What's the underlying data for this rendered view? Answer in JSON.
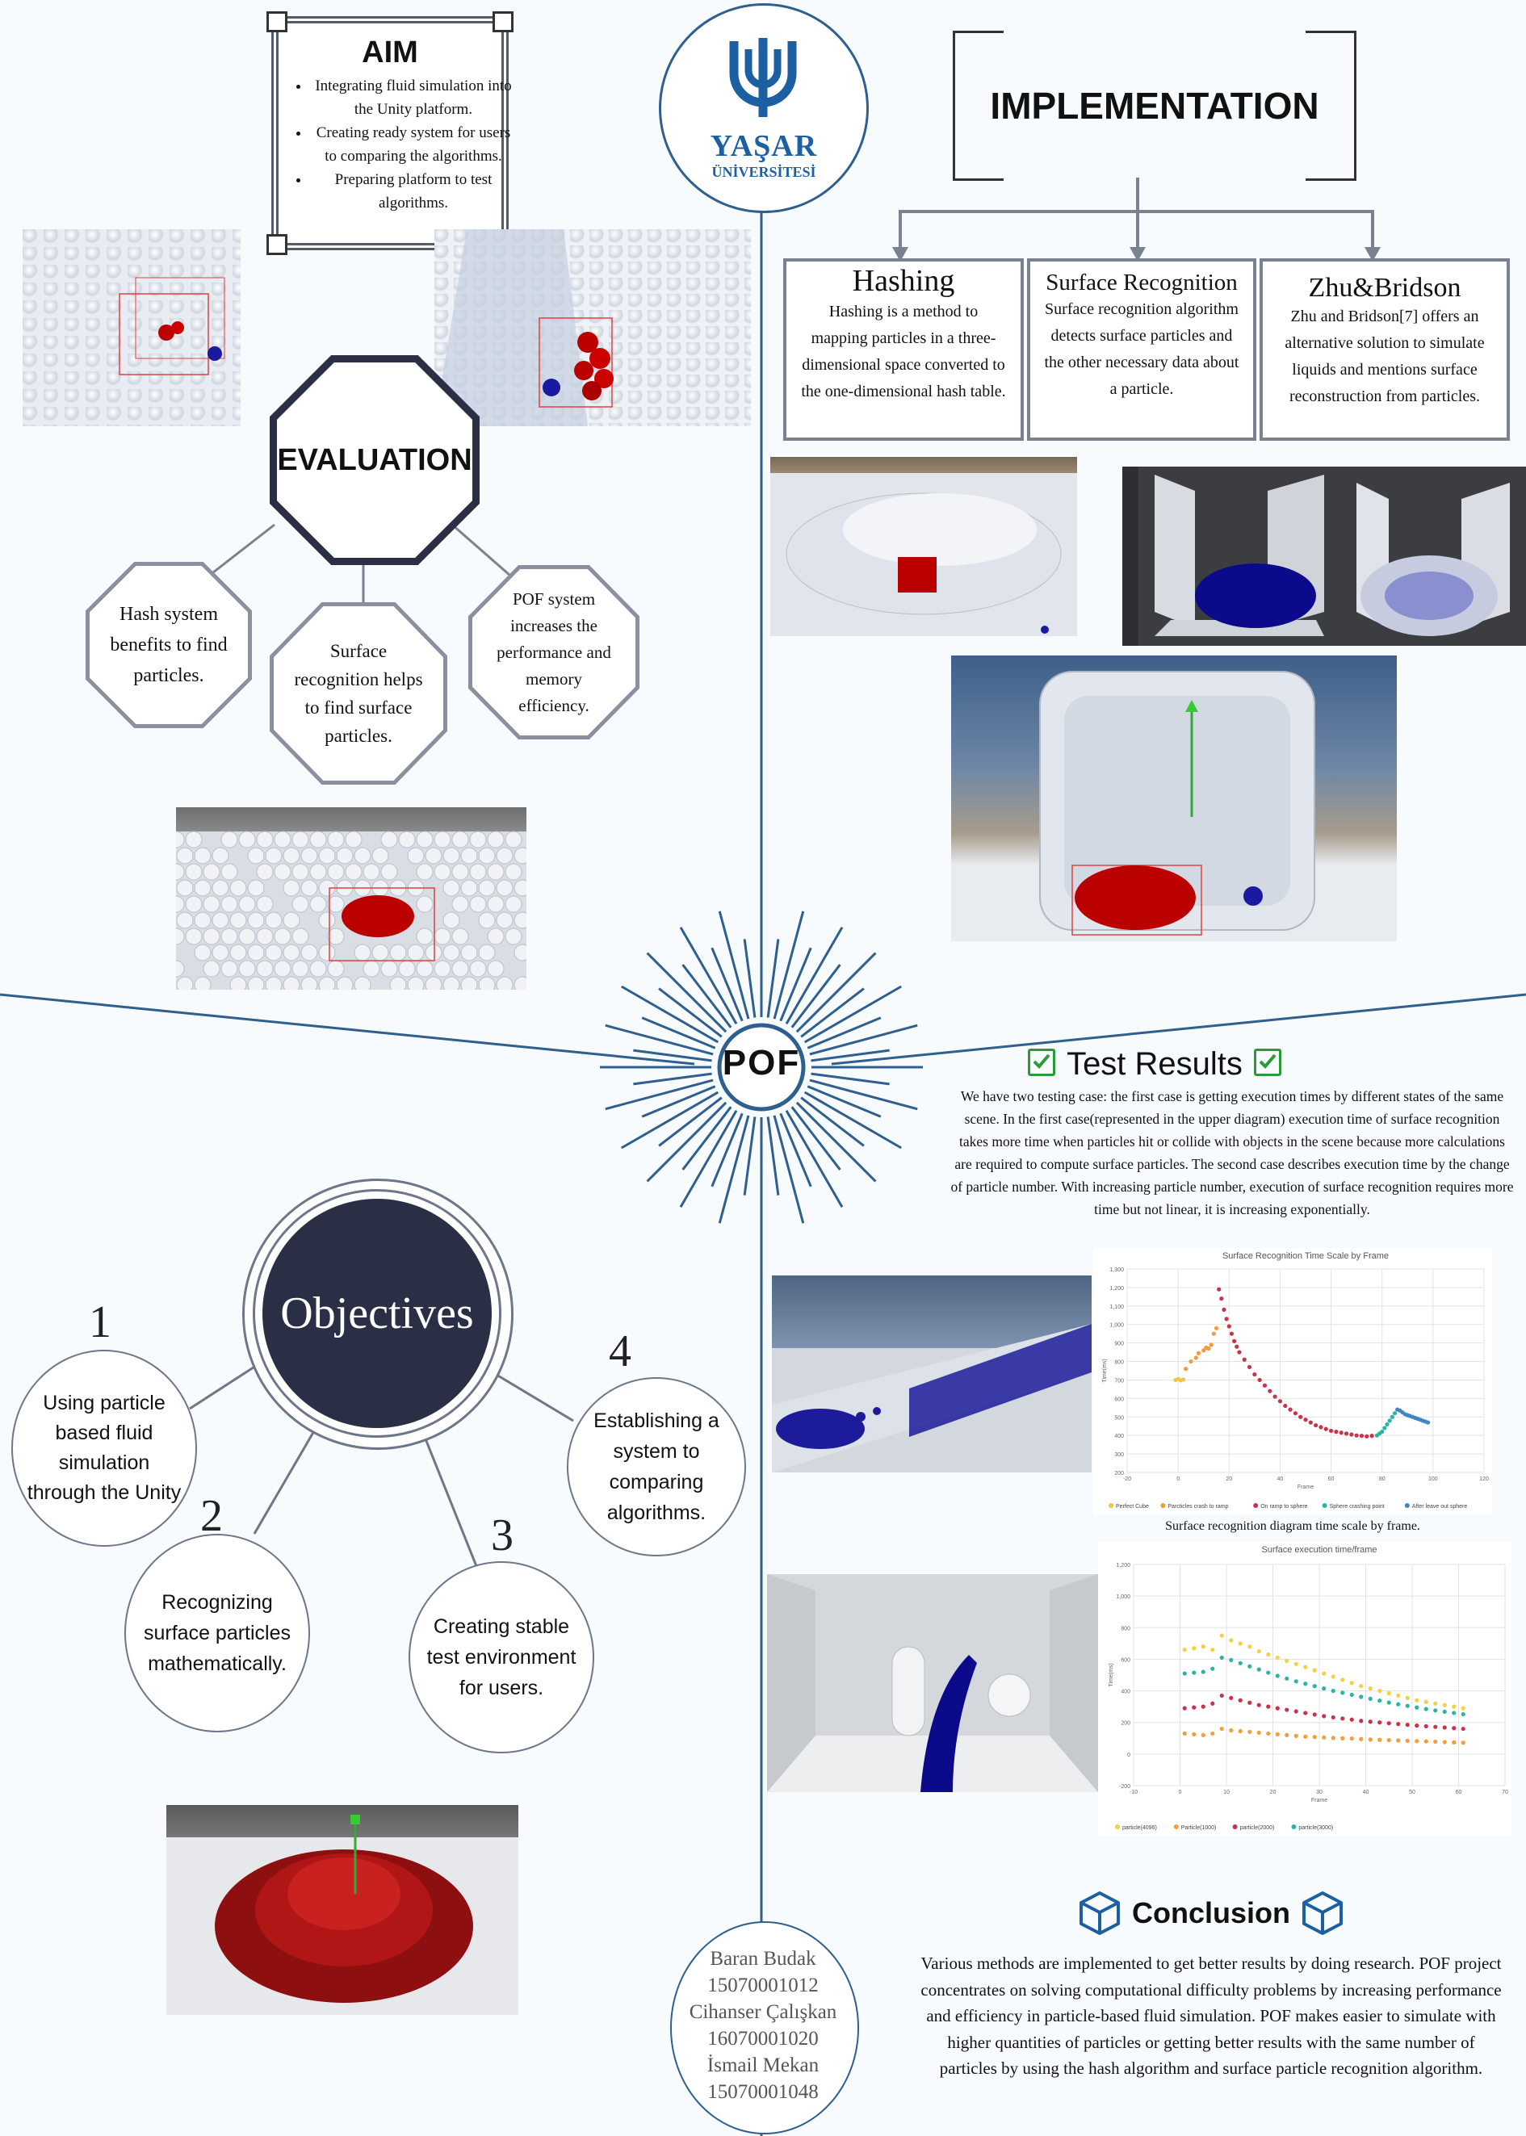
{
  "logo": {
    "name": "YAŞAR",
    "sub": "ÜNİVERSİTESİ"
  },
  "aim": {
    "title": "AIM",
    "items": [
      "Integrating fluid simulation into the Unity platform.",
      "Creating ready system for users to comparing the algorithms.",
      "Preparing platform to test algorithms."
    ]
  },
  "implementation": {
    "title": "IMPLEMENTATION",
    "hashing": {
      "title": "Hashing",
      "text": "Hashing is a method to mapping particles in a three-dimensional space converted to the one-dimensional hash table."
    },
    "surface": {
      "title": "Surface Recognition",
      "text": "Surface recognition algorithm detects surface particles and the other necessary data about a particle."
    },
    "zhu": {
      "title": "Zhu&Bridson",
      "text": "Zhu and Bridson[7] offers an alternative solution to simulate liquids and mentions surface reconstruction from particles."
    }
  },
  "evaluation": {
    "title": "EVALUATION",
    "items": [
      "Hash system benefits to find particles.",
      "Surface recognition helps to find surface particles.",
      "POF system increases the performance and memory efficiency."
    ]
  },
  "center_label": "POF",
  "objectives": {
    "title": "Objectives",
    "items": [
      {
        "num": "1",
        "text": "Using particle based fluid simulation through the Unity"
      },
      {
        "num": "2",
        "text": "Recognizing surface particles mathematically."
      },
      {
        "num": "3",
        "text": "Creating stable test environment for users."
      },
      {
        "num": "4",
        "text": "Establishing a system to comparing algorithms."
      }
    ]
  },
  "test_results": {
    "title": "Test Results",
    "text": "We have two testing case: the first case is getting execution times by different states of the same scene. In the first case(represented in the upper diagram) execution time of surface recognition takes more time when particles hit or collide with objects in the scene because more calculations are required to compute surface particles. The second case describes execution time by the change of particle number. With increasing particle number, execution of surface recognition requires more time but not linear, it is increasing exponentially.",
    "caption2": "Surface recognition diagram time scale by frame."
  },
  "conclusion": {
    "title": "Conclusion",
    "text": "Various methods are implemented to get better results by doing research. POF project concentrates on solving computational difficulty problems by increasing performance and efficiency in particle-based fluid simulation. POF makes easier to simulate with higher quantities of particles or getting better results with the same number of particles by using the hash algorithm and surface particle recognition algorithm."
  },
  "authors": [
    "Baran Budak",
    "15070001012",
    "Cihanser Çalışkan",
    "16070001020",
    "İsmail Mekan",
    "15070001048"
  ],
  "chart_data": [
    {
      "type": "scatter",
      "title": "Surface Recognition Time Scale by Frame",
      "xlabel": "Frame",
      "ylabel": "Time(ms)",
      "xlim": [
        -20,
        120
      ],
      "ylim": [
        200,
        1300
      ],
      "xticks": [
        -20,
        0,
        20,
        40,
        60,
        80,
        100,
        120
      ],
      "yticks": [
        200,
        300,
        400,
        500,
        600,
        700,
        800,
        900,
        1000,
        1100,
        1200,
        1300
      ],
      "grid": true,
      "legend": "bottom",
      "series": [
        {
          "name": "Perfect Cube",
          "color": "#f5c242",
          "points": [
            [
              -1,
              700
            ],
            [
              0,
              705
            ],
            [
              1,
              698
            ],
            [
              2,
              702
            ]
          ]
        },
        {
          "name": "Parcticles crash to ramp",
          "color": "#f5993a",
          "points": [
            [
              3,
              760
            ],
            [
              5,
              800
            ],
            [
              7,
              820
            ],
            [
              8,
              845
            ],
            [
              10,
              860
            ],
            [
              11,
              875
            ],
            [
              12,
              870
            ],
            [
              13,
              890
            ],
            [
              14,
              950
            ],
            [
              15,
              980
            ]
          ]
        },
        {
          "name": "On ramp to sphere",
          "color": "#c8334a",
          "points": [
            [
              16,
              1190
            ],
            [
              17,
              1140
            ],
            [
              18,
              1080
            ],
            [
              19,
              1030
            ],
            [
              20,
              990
            ],
            [
              21,
              950
            ],
            [
              22,
              910
            ],
            [
              23,
              880
            ],
            [
              24,
              850
            ],
            [
              26,
              810
            ],
            [
              28,
              770
            ],
            [
              30,
              730
            ],
            [
              32,
              700
            ],
            [
              34,
              670
            ],
            [
              36,
              640
            ],
            [
              38,
              610
            ],
            [
              40,
              585
            ],
            [
              42,
              560
            ],
            [
              44,
              540
            ],
            [
              46,
              520
            ],
            [
              48,
              500
            ],
            [
              50,
              485
            ],
            [
              52,
              470
            ],
            [
              54,
              455
            ],
            [
              56,
              445
            ],
            [
              58,
              435
            ],
            [
              60,
              425
            ],
            [
              62,
              420
            ],
            [
              64,
              415
            ],
            [
              66,
              410
            ],
            [
              68,
              405
            ],
            [
              70,
              400
            ],
            [
              72,
              398
            ],
            [
              74,
              395
            ],
            [
              76,
              398
            ]
          ]
        },
        {
          "name": "Sphere crashing point",
          "color": "#2ab3a6",
          "points": [
            [
              78,
              400
            ],
            [
              79,
              410
            ],
            [
              80,
              420
            ],
            [
              81,
              440
            ],
            [
              82,
              460
            ],
            [
              83,
              480
            ],
            [
              84,
              500
            ],
            [
              85,
              520
            ]
          ]
        },
        {
          "name": "After leave out sphere",
          "color": "#3f87c4",
          "points": [
            [
              86,
              540
            ],
            [
              87,
              535
            ],
            [
              88,
              525
            ],
            [
              89,
              515
            ],
            [
              90,
              510
            ],
            [
              91,
              505
            ],
            [
              92,
              500
            ],
            [
              93,
              495
            ],
            [
              94,
              490
            ],
            [
              95,
              485
            ],
            [
              96,
              480
            ],
            [
              97,
              475
            ],
            [
              98,
              470
            ]
          ]
        }
      ]
    },
    {
      "type": "scatter",
      "title": "Surface execution time/frame",
      "xlabel": "Frame",
      "ylabel": "Time(ms)",
      "xlim": [
        -10,
        70
      ],
      "ylim": [
        -200,
        1200
      ],
      "xticks": [
        -10,
        0,
        10,
        20,
        30,
        40,
        50,
        60,
        70
      ],
      "yticks": [
        -200,
        0,
        200,
        400,
        600,
        800,
        1000,
        1200
      ],
      "grid": true,
      "legend": "bottom",
      "series": [
        {
          "name": "particle(4096)",
          "color": "#f5d042",
          "points": [
            [
              1,
              660
            ],
            [
              3,
              670
            ],
            [
              5,
              680
            ],
            [
              7,
              660
            ],
            [
              9,
              750
            ],
            [
              11,
              720
            ],
            [
              13,
              700
            ],
            [
              15,
              680
            ],
            [
              17,
              650
            ],
            [
              19,
              630
            ],
            [
              21,
              610
            ],
            [
              23,
              590
            ],
            [
              25,
              570
            ],
            [
              27,
              550
            ],
            [
              29,
              530
            ],
            [
              31,
              510
            ],
            [
              33,
              490
            ],
            [
              35,
              470
            ],
            [
              37,
              450
            ],
            [
              39,
              430
            ],
            [
              41,
              415
            ],
            [
              43,
              400
            ],
            [
              45,
              385
            ],
            [
              47,
              370
            ],
            [
              49,
              355
            ],
            [
              51,
              340
            ],
            [
              53,
              330
            ],
            [
              55,
              320
            ],
            [
              57,
              310
            ],
            [
              59,
              300
            ],
            [
              61,
              290
            ]
          ]
        },
        {
          "name": "Particle(1000)",
          "color": "#f59e3a",
          "points": [
            [
              1,
              130
            ],
            [
              3,
              125
            ],
            [
              5,
              120
            ],
            [
              7,
              130
            ],
            [
              9,
              160
            ],
            [
              11,
              150
            ],
            [
              13,
              145
            ],
            [
              15,
              140
            ],
            [
              17,
              135
            ],
            [
              19,
              130
            ],
            [
              21,
              125
            ],
            [
              23,
              120
            ],
            [
              25,
              115
            ],
            [
              27,
              110
            ],
            [
              29,
              108
            ],
            [
              31,
              105
            ],
            [
              33,
              102
            ],
            [
              35,
              100
            ],
            [
              37,
              98
            ],
            [
              39,
              95
            ],
            [
              41,
              92
            ],
            [
              43,
              90
            ],
            [
              45,
              88
            ],
            [
              47,
              86
            ],
            [
              49,
              84
            ],
            [
              51,
              82
            ],
            [
              53,
              80
            ],
            [
              55,
              78
            ],
            [
              57,
              76
            ],
            [
              59,
              74
            ],
            [
              61,
              72
            ]
          ]
        },
        {
          "name": "particle(2000)",
          "color": "#c8334a",
          "points": [
            [
              1,
              290
            ],
            [
              3,
              295
            ],
            [
              5,
              300
            ],
            [
              7,
              320
            ],
            [
              9,
              370
            ],
            [
              11,
              355
            ],
            [
              13,
              340
            ],
            [
              15,
              325
            ],
            [
              17,
              310
            ],
            [
              19,
              300
            ],
            [
              21,
              290
            ],
            [
              23,
              280
            ],
            [
              25,
              270
            ],
            [
              27,
              260
            ],
            [
              29,
              250
            ],
            [
              31,
              240
            ],
            [
              33,
              232
            ],
            [
              35,
              225
            ],
            [
              37,
              218
            ],
            [
              39,
              210
            ],
            [
              41,
              205
            ],
            [
              43,
              200
            ],
            [
              45,
              195
            ],
            [
              47,
              190
            ],
            [
              49,
              185
            ],
            [
              51,
              180
            ],
            [
              53,
              176
            ],
            [
              55,
              172
            ],
            [
              57,
              168
            ],
            [
              59,
              164
            ],
            [
              61,
              160
            ]
          ]
        },
        {
          "name": "particle(3000)",
          "color": "#2ab3a6",
          "points": [
            [
              1,
              510
            ],
            [
              3,
              515
            ],
            [
              5,
              520
            ],
            [
              7,
              540
            ],
            [
              9,
              610
            ],
            [
              11,
              595
            ],
            [
              13,
              575
            ],
            [
              15,
              555
            ],
            [
              17,
              535
            ],
            [
              19,
              515
            ],
            [
              21,
              495
            ],
            [
              23,
              478
            ],
            [
              25,
              460
            ],
            [
              27,
              445
            ],
            [
              29,
              430
            ],
            [
              31,
              415
            ],
            [
              33,
              400
            ],
            [
              35,
              388
            ],
            [
              37,
              375
            ],
            [
              39,
              362
            ],
            [
              41,
              350
            ],
            [
              43,
              338
            ],
            [
              45,
              326
            ],
            [
              47,
              315
            ],
            [
              49,
              305
            ],
            [
              51,
              295
            ],
            [
              53,
              285
            ],
            [
              55,
              276
            ],
            [
              57,
              268
            ],
            [
              59,
              260
            ],
            [
              61,
              252
            ]
          ]
        }
      ]
    }
  ]
}
